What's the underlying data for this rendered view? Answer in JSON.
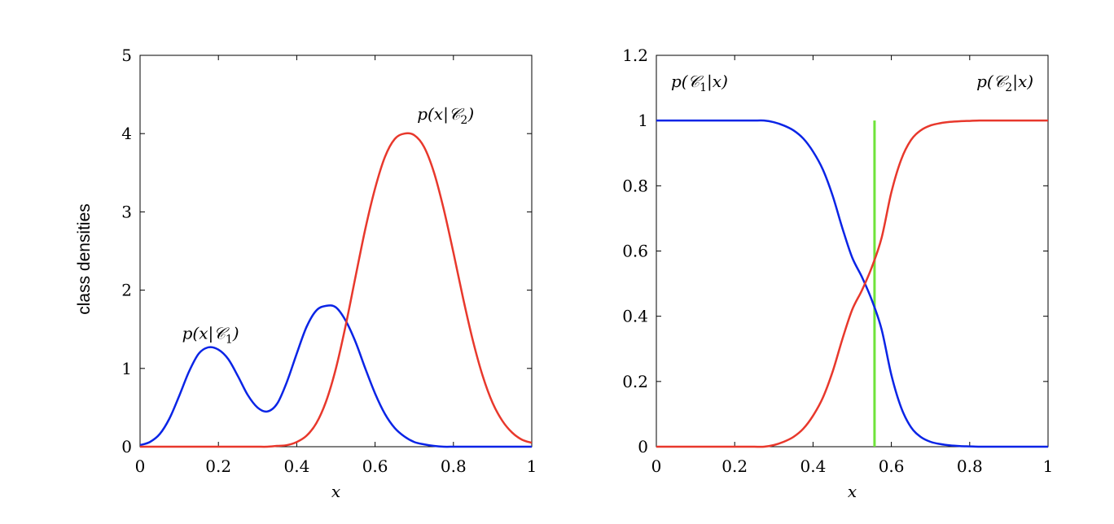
{
  "chart_data": [
    {
      "type": "line",
      "title": "",
      "xlabel": "x",
      "ylabel": "class densities",
      "xlim": [
        0,
        1
      ],
      "ylim": [
        0,
        5
      ],
      "xticks": [
        0,
        0.2,
        0.4,
        0.6,
        0.8,
        1
      ],
      "xtick_labels": [
        "0",
        "0.2",
        "0.4",
        "0.6",
        "0.8",
        "1"
      ],
      "yticks": [
        0,
        1,
        2,
        3,
        4,
        5
      ],
      "ytick_labels": [
        "0",
        "1",
        "2",
        "3",
        "4",
        "5"
      ],
      "grid": false,
      "x": [
        0.0,
        0.025,
        0.05,
        0.075,
        0.1,
        0.125,
        0.15,
        0.175,
        0.2,
        0.225,
        0.25,
        0.275,
        0.3,
        0.325,
        0.35,
        0.375,
        0.4,
        0.425,
        0.45,
        0.475,
        0.5,
        0.525,
        0.55,
        0.575,
        0.6,
        0.625,
        0.65,
        0.675,
        0.7,
        0.725,
        0.75,
        0.775,
        0.8,
        0.825,
        0.85,
        0.875,
        0.9,
        0.925,
        0.95,
        0.975,
        1.0
      ],
      "series": [
        {
          "name": "p(x|C1)",
          "color": "#0a24e6",
          "values": [
            0.02,
            0.06,
            0.16,
            0.36,
            0.65,
            0.96,
            1.19,
            1.27,
            1.24,
            1.12,
            0.9,
            0.66,
            0.5,
            0.45,
            0.55,
            0.83,
            1.19,
            1.53,
            1.74,
            1.8,
            1.78,
            1.61,
            1.34,
            1.0,
            0.68,
            0.42,
            0.24,
            0.13,
            0.06,
            0.03,
            0.01,
            0.0,
            0.0,
            0.0,
            0.0,
            0.0,
            0.0,
            0.0,
            0.0,
            0.0,
            0.0
          ]
        },
        {
          "name": "p(x|C2)",
          "color": "#e8382c",
          "values": [
            0.0,
            0.0,
            0.0,
            0.0,
            0.0,
            0.0,
            0.0,
            0.0,
            0.0,
            0.0,
            0.0,
            0.0,
            0.0,
            0.0,
            0.01,
            0.02,
            0.06,
            0.14,
            0.3,
            0.58,
            1.0,
            1.55,
            2.17,
            2.78,
            3.3,
            3.7,
            3.93,
            4.0,
            3.98,
            3.83,
            3.51,
            3.04,
            2.48,
            1.89,
            1.35,
            0.9,
            0.56,
            0.33,
            0.18,
            0.09,
            0.05
          ]
        }
      ],
      "annotations": [
        {
          "text": "p(x|𝒞₁)",
          "x": 0.18,
          "y": 1.45
        },
        {
          "text": "p(x|𝒞₂)",
          "x": 0.78,
          "y": 4.25
        }
      ]
    },
    {
      "type": "line",
      "title": "",
      "xlabel": "x",
      "ylabel": "",
      "xlim": [
        0,
        1
      ],
      "ylim": [
        0,
        1.2
      ],
      "xticks": [
        0,
        0.2,
        0.4,
        0.6,
        0.8,
        1
      ],
      "xtick_labels": [
        "0",
        "0.2",
        "0.4",
        "0.6",
        "0.8",
        "1"
      ],
      "yticks": [
        0,
        0.2,
        0.4,
        0.6,
        0.8,
        1,
        1.2
      ],
      "ytick_labels": [
        "0",
        "0.2",
        "0.4",
        "0.6",
        "0.8",
        "1",
        "1.2"
      ],
      "grid": false,
      "x": [
        0.0,
        0.025,
        0.05,
        0.075,
        0.1,
        0.125,
        0.15,
        0.175,
        0.2,
        0.225,
        0.25,
        0.275,
        0.3,
        0.325,
        0.35,
        0.375,
        0.4,
        0.425,
        0.45,
        0.475,
        0.5,
        0.525,
        0.55,
        0.575,
        0.6,
        0.625,
        0.65,
        0.675,
        0.7,
        0.725,
        0.75,
        0.775,
        0.8,
        0.825,
        0.85,
        0.875,
        0.9,
        0.925,
        0.95,
        0.975,
        1.0
      ],
      "series": [
        {
          "name": "p(C1|x)",
          "color": "#0a24e6",
          "values": [
            1.0,
            1.0,
            1.0,
            1.0,
            1.0,
            1.0,
            1.0,
            1.0,
            1.0,
            1.0,
            1.0,
            1.0,
            0.995,
            0.985,
            0.97,
            0.945,
            0.905,
            0.85,
            0.77,
            0.67,
            0.58,
            0.52,
            0.45,
            0.36,
            0.22,
            0.12,
            0.06,
            0.03,
            0.015,
            0.008,
            0.004,
            0.002,
            0.001,
            0.0,
            0.0,
            0.0,
            0.0,
            0.0,
            0.0,
            0.0,
            0.0
          ]
        },
        {
          "name": "p(C2|x)",
          "color": "#e8382c",
          "values": [
            0.0,
            0.0,
            0.0,
            0.0,
            0.0,
            0.0,
            0.0,
            0.0,
            0.0,
            0.0,
            0.0,
            0.0,
            0.005,
            0.015,
            0.03,
            0.055,
            0.095,
            0.15,
            0.23,
            0.33,
            0.42,
            0.48,
            0.55,
            0.64,
            0.78,
            0.88,
            0.94,
            0.97,
            0.985,
            0.992,
            0.996,
            0.998,
            0.999,
            1.0,
            1.0,
            1.0,
            1.0,
            1.0,
            1.0,
            1.0,
            1.0
          ]
        }
      ],
      "vline": {
        "x": 0.557,
        "y0": 0,
        "y1": 1.0,
        "color": "#6fe33a"
      },
      "annotations": [
        {
          "text": "p(𝒞₁|x)",
          "x": 0.11,
          "y": 1.12
        },
        {
          "text": "p(𝒞₂|x)",
          "x": 0.89,
          "y": 1.12
        }
      ]
    }
  ]
}
